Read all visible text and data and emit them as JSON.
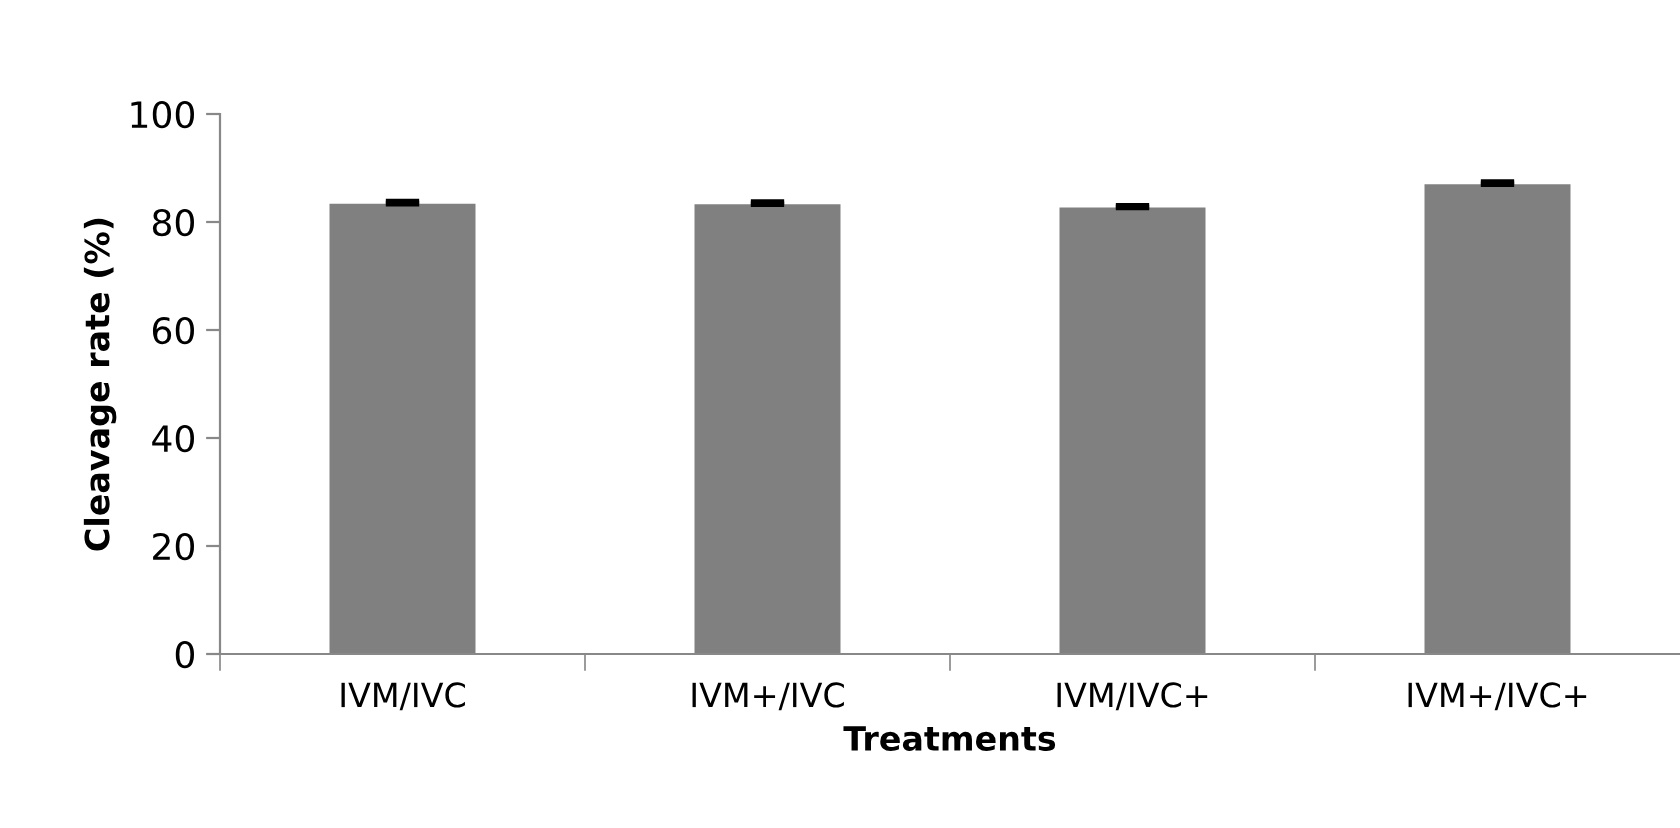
{
  "chart_data": {
    "type": "bar",
    "xlabel": "Treatments",
    "ylabel": "Cleavage rate (%)",
    "categories": [
      "IVM/IVC",
      "IVM+/IVC",
      "IVM/IVC+",
      "IVM+/IVC+"
    ],
    "values": [
      83.4,
      83.3,
      82.7,
      87.0
    ],
    "errors": [
      [
        83.4,
        83.8
      ],
      [
        83.3,
        83.7
      ],
      [
        82.7,
        83.0
      ],
      [
        87.0,
        87.4
      ]
    ],
    "color": "#808080",
    "ylim": [
      0,
      100
    ],
    "yticks": [
      0,
      20,
      40,
      60,
      80,
      100
    ],
    "grid": false,
    "legend": false
  }
}
